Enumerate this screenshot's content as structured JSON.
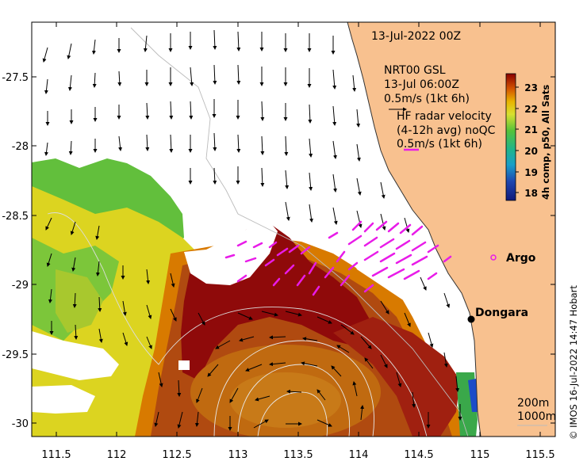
{
  "map": {
    "date_label": "13-Jul-2022 00Z",
    "nrt_title": "NRT00 GSL",
    "nrt_time": "13-Jul 06:00Z",
    "nrt_scale": "0.5m/s (1kt 6h)",
    "hf_title": "HF radar velocity",
    "hf_avg": "(4-12h avg) noQC",
    "hf_scale": "0.5m/s (1kt 6h)",
    "argo_label": "Argo",
    "city_label": "Dongara",
    "depth_label_1": "200m",
    "depth_label_2": "1000m",
    "credit": "© IMOS 16-Jul-2022 14:47 Hobart",
    "colorbar": {
      "title": "4h comp, p50, All Sats",
      "ticks": [
        "23",
        "22",
        "21",
        "20",
        "19",
        "18"
      ]
    },
    "x_ticks": [
      "111.5",
      "112",
      "112.5",
      "113",
      "113.5",
      "114",
      "114.5",
      "115",
      "115.5"
    ],
    "y_ticks": [
      "-27.5",
      "-28",
      "-28.5",
      "-29",
      "-29.5",
      "-30"
    ],
    "colors": {
      "land": "#f8c18f",
      "hf_arrows": "#e81ce8",
      "warm": "#8f0a0a",
      "orange": "#cd6a00",
      "yellow": "#dfd81f",
      "green": "#60c03a"
    }
  }
}
